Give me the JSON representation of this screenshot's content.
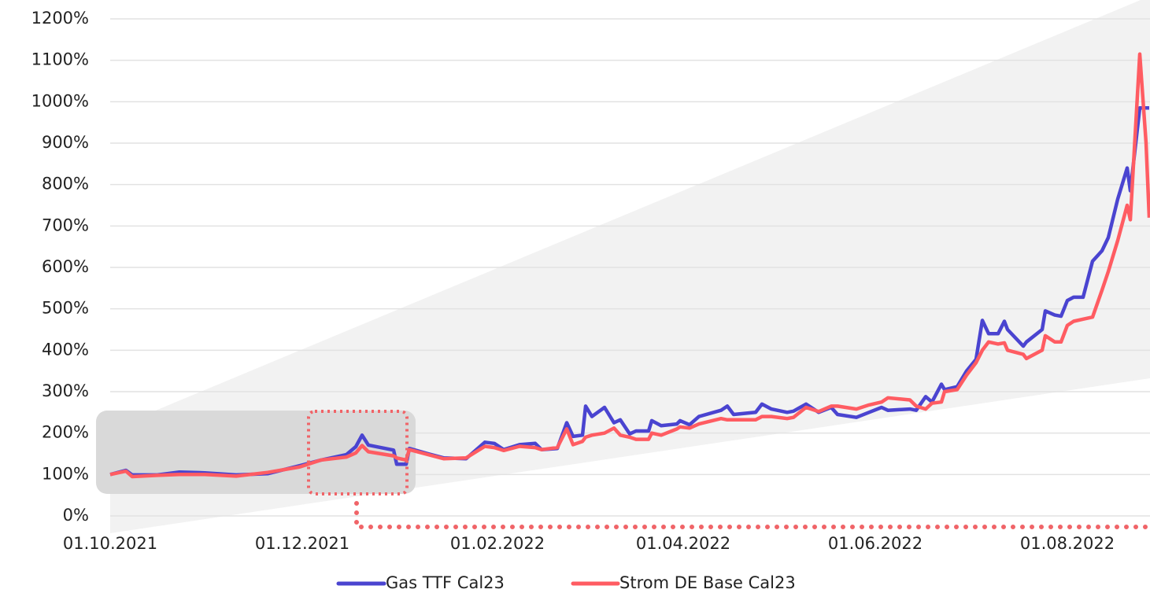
{
  "chart_data": {
    "type": "line",
    "x": [
      "01.10.2021",
      "06.10.2021",
      "08.10.2021",
      "16.10.2021",
      "23.10.2021",
      "31.10.2021",
      "10.11.2021",
      "20.11.2021",
      "30.11.2021",
      "07.12.2021",
      "15.12.2021",
      "18.12.2021",
      "20.12.2021",
      "22.12.2021",
      "30.12.2021",
      "31.12.2021",
      "03.01.2022",
      "04.01.2022",
      "10.01.2022",
      "15.01.2022",
      "22.01.2022",
      "28.01.2022",
      "31.01.2022",
      "03.02.2022",
      "08.02.2022",
      "13.02.2022",
      "15.02.2022",
      "20.02.2022",
      "23.02.2022",
      "25.02.2022",
      "28.02.2022",
      "01.03.2022",
      "03.03.2022",
      "07.03.2022",
      "10.03.2022",
      "12.03.2022",
      "15.03.2022",
      "17.03.2022",
      "21.03.2022",
      "22.03.2022",
      "25.03.2022",
      "30.03.2022",
      "31.03.2022",
      "03.04.2022",
      "06.04.2022",
      "13.04.2022",
      "15.04.2022",
      "17.04.2022",
      "24.04.2022",
      "26.04.2022",
      "29.04.2022",
      "04.05.2022",
      "06.05.2022",
      "10.05.2022",
      "14.05.2022",
      "18.05.2022",
      "20.05.2022",
      "26.05.2022",
      "30.05.2022",
      "03.06.2022",
      "05.06.2022",
      "12.06.2022",
      "14.06.2022",
      "17.06.2022",
      "19.06.2022",
      "22.06.2022",
      "23.06.2022",
      "27.06.2022",
      "30.06.2022",
      "03.07.2022",
      "05.07.2022",
      "07.07.2022",
      "10.07.2022",
      "12.07.2022",
      "13.07.2022",
      "18.07.2022",
      "19.07.2022",
      "24.07.2022",
      "25.07.2022",
      "28.07.2022",
      "30.07.2022",
      "01.08.2022",
      "03.08.2022",
      "06.08.2022",
      "09.08.2022",
      "12.08.2022",
      "14.08.2022",
      "17.08.2022",
      "20.08.2022",
      "21.08.2022",
      "24.08.2022",
      "26.08.2022",
      "27.08.2022"
    ],
    "series": [
      {
        "name": "Gas TTF Cal23",
        "color": "#4a44d0",
        "values": [
          100,
          110,
          99,
          99,
          106,
          104,
          99,
          102,
          121,
          135,
          148,
          167,
          195,
          171,
          159,
          125,
          125,
          163,
          150,
          140,
          138,
          178,
          175,
          160,
          172,
          175,
          160,
          163,
          225,
          192,
          195,
          265,
          240,
          262,
          225,
          232,
          198,
          205,
          205,
          230,
          218,
          222,
          230,
          220,
          240,
          255,
          265,
          245,
          250,
          270,
          258,
          250,
          253,
          270,
          250,
          262,
          245,
          238,
          250,
          262,
          255,
          258,
          255,
          288,
          275,
          318,
          305,
          312,
          350,
          378,
          472,
          440,
          440,
          470,
          450,
          410,
          420,
          450,
          495,
          485,
          482,
          520,
          528,
          528,
          615,
          640,
          672,
          765,
          840,
          785,
          985,
          985,
          985
        ]
      },
      {
        "name": "Strom DE Base Cal23",
        "color": "#ff5c62",
        "values": [
          100,
          108,
          95,
          98,
          100,
          100,
          96,
          105,
          118,
          135,
          142,
          152,
          170,
          155,
          145,
          140,
          135,
          160,
          148,
          138,
          140,
          168,
          165,
          158,
          168,
          165,
          160,
          165,
          210,
          172,
          180,
          190,
          195,
          200,
          212,
          195,
          190,
          185,
          185,
          200,
          195,
          210,
          215,
          212,
          222,
          235,
          232,
          232,
          232,
          240,
          240,
          235,
          238,
          262,
          252,
          265,
          265,
          258,
          268,
          275,
          285,
          280,
          265,
          258,
          272,
          275,
          300,
          305,
          340,
          370,
          400,
          420,
          415,
          418,
          400,
          390,
          380,
          400,
          435,
          420,
          420,
          460,
          470,
          475,
          480,
          545,
          590,
          665,
          750,
          715,
          1115,
          900,
          720
        ]
      }
    ],
    "xlim": [
      "01.10.2021",
      "27.08.2022"
    ],
    "xticks": [
      "01.10.2021",
      "01.12.2021",
      "01.02.2022",
      "01.04.2022",
      "01.06.2022",
      "01.08.2022"
    ],
    "ylim": [
      0,
      1200
    ],
    "yticks": [
      {
        "value": 0,
        "label": "0%"
      },
      {
        "value": 100,
        "label": "100%"
      },
      {
        "value": 200,
        "label": "200%"
      },
      {
        "value": 300,
        "label": "300%"
      },
      {
        "value": 400,
        "label": "400%"
      },
      {
        "value": 500,
        "label": "500%"
      },
      {
        "value": 600,
        "label": "600%"
      },
      {
        "value": 700,
        "label": "700%"
      },
      {
        "value": 800,
        "label": "800%"
      },
      {
        "value": 900,
        "label": "900%"
      },
      {
        "value": 1000,
        "label": "1000%"
      },
      {
        "value": 1100,
        "label": "1100%"
      },
      {
        "value": 1200,
        "label": "1200%"
      }
    ],
    "grid": true,
    "legend": "bottom"
  }
}
